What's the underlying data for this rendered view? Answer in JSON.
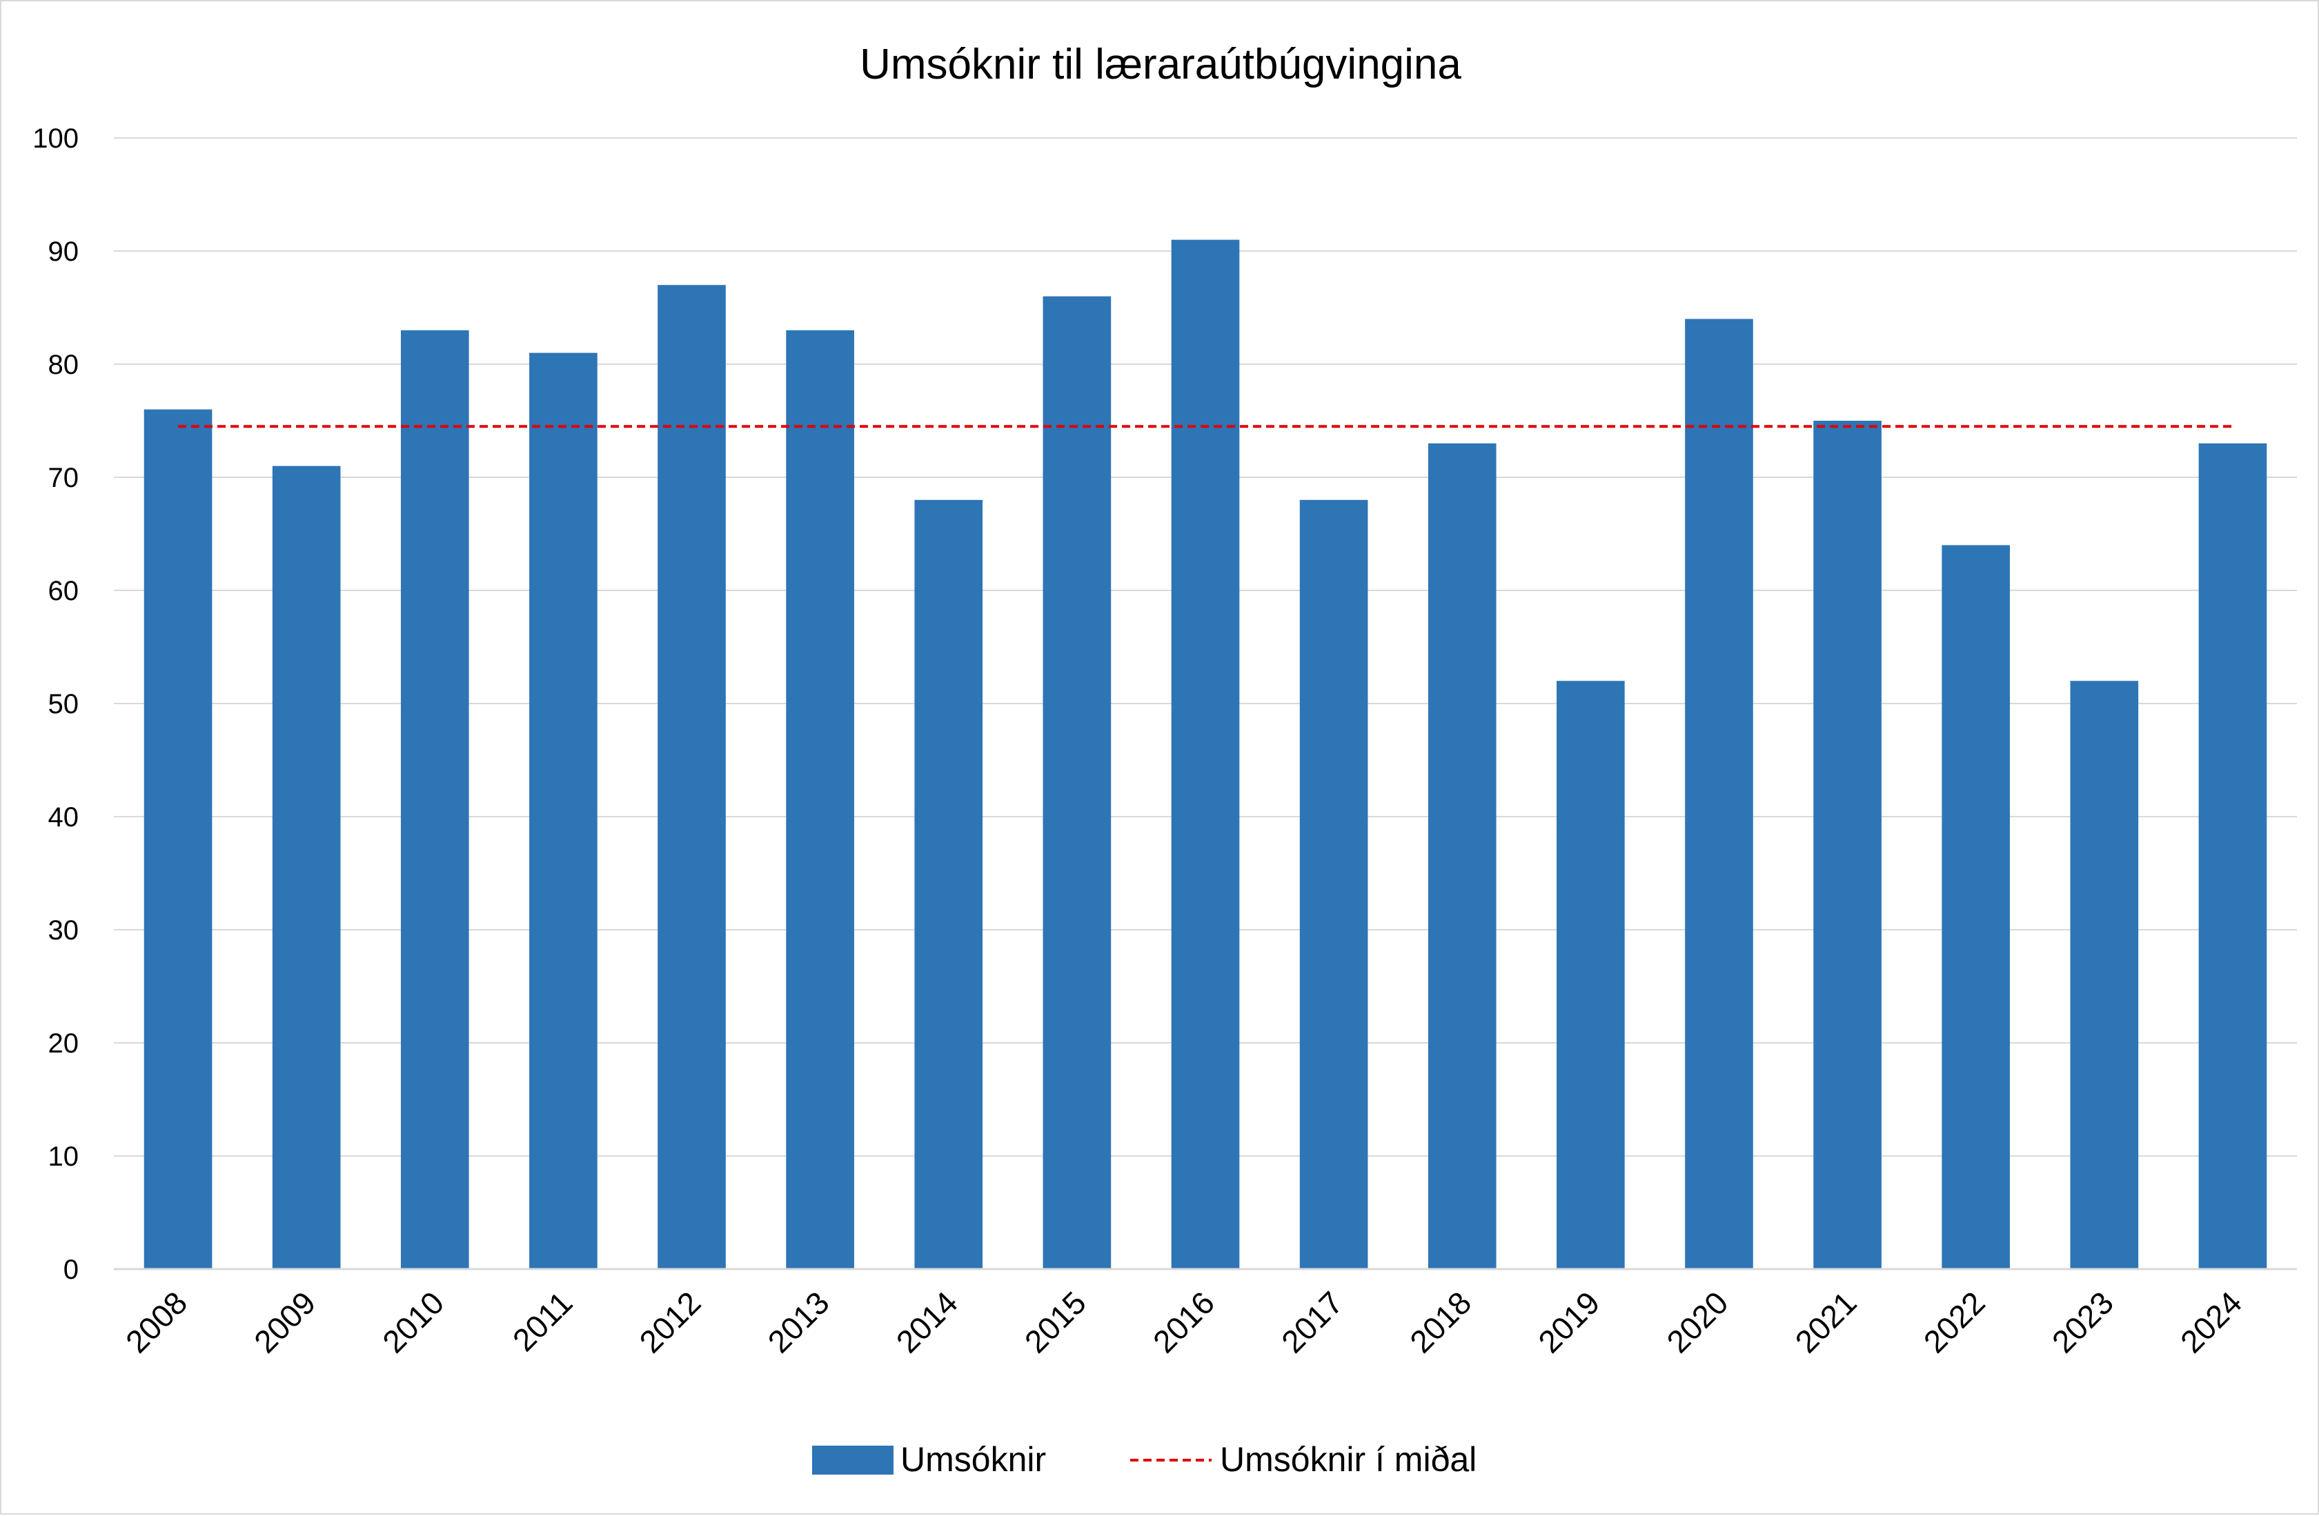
{
  "chart_data": {
    "type": "bar",
    "title": "Umsóknir til læraraútbúgvingina",
    "xlabel": "",
    "ylabel": "",
    "categories": [
      "2008",
      "2009",
      "2010",
      "2011",
      "2012",
      "2013",
      "2014",
      "2015",
      "2016",
      "2017",
      "2018",
      "2019",
      "2020",
      "2021",
      "2022",
      "2023",
      "2024"
    ],
    "series": [
      {
        "name": "Umsóknir",
        "kind": "bar",
        "color": "#2e75b6",
        "values": [
          76,
          71,
          83,
          81,
          87,
          83,
          68,
          86,
          91,
          68,
          73,
          52,
          84,
          75,
          64,
          52,
          73
        ]
      },
      {
        "name": "Umsóknir í miðal",
        "kind": "line",
        "style": "dashed",
        "color": "#e00000",
        "values": [
          74.5,
          74.5,
          74.5,
          74.5,
          74.5,
          74.5,
          74.5,
          74.5,
          74.5,
          74.5,
          74.5,
          74.5,
          74.5,
          74.5,
          74.5,
          74.5,
          74.5
        ]
      }
    ],
    "ylim": [
      0,
      100
    ],
    "yticks": [
      "0",
      "10",
      "20",
      "30",
      "40",
      "50",
      "60",
      "70",
      "80",
      "90",
      "100"
    ],
    "grid": true,
    "legend_position": "bottom"
  }
}
